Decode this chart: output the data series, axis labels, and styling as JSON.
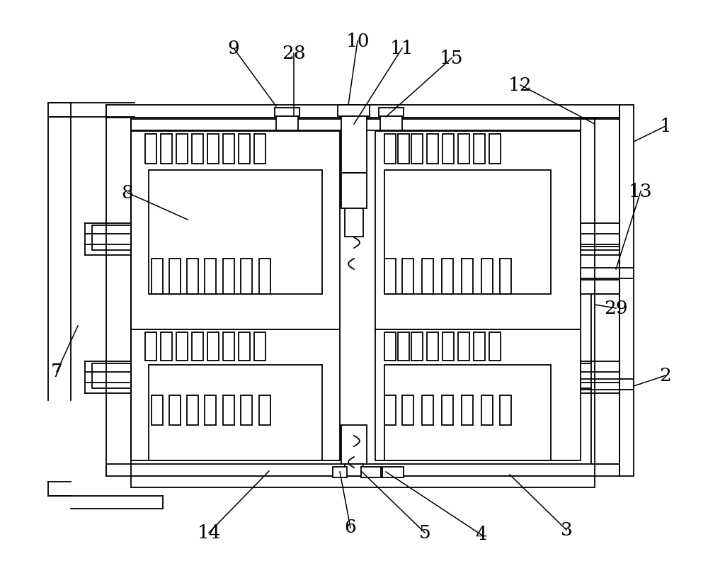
{
  "fig_width": 10.0,
  "fig_height": 8.23,
  "line_color": "#000000",
  "bg_color": "#ffffff",
  "lw": 1.3,
  "label_fontsize": 19,
  "ann_lw": 1.1
}
